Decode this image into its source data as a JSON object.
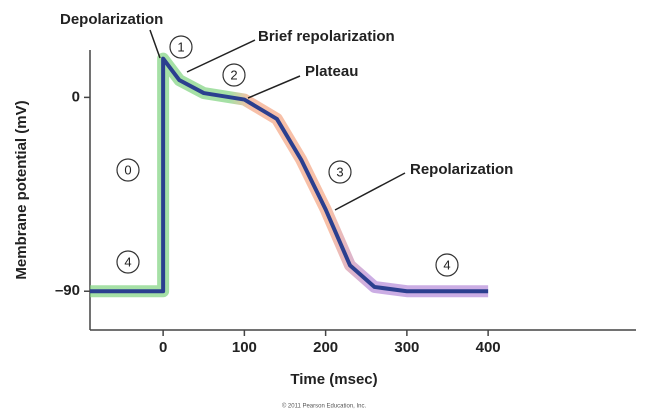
{
  "chart_data": {
    "type": "line",
    "x": [
      -90,
      0,
      0,
      20,
      50,
      100,
      140,
      170,
      200,
      230,
      260,
      300,
      400
    ],
    "values": [
      -90,
      -90,
      18,
      8,
      2,
      -1,
      -10,
      -29,
      -52,
      -78,
      -88,
      -90,
      -90
    ],
    "color": "#2b3f8f",
    "xlim": [
      -90,
      582
    ],
    "xticks": [
      0,
      100,
      200,
      300,
      400
    ],
    "ylim": [
      -108,
      22
    ],
    "yticks": [
      0,
      {
        "value": -90,
        "label": "–90"
      }
    ],
    "xlabel": "Time (msec)",
    "ylabel": "Membrane potential (mV)",
    "annotations": [
      "Depolarization",
      "Brief repolarization",
      "Plateau",
      "Repolarization"
    ],
    "phase_labels": [
      "1",
      "2",
      "0",
      "3",
      "4",
      "4"
    ],
    "credit": "© 2011 Pearson Education, Inc."
  }
}
